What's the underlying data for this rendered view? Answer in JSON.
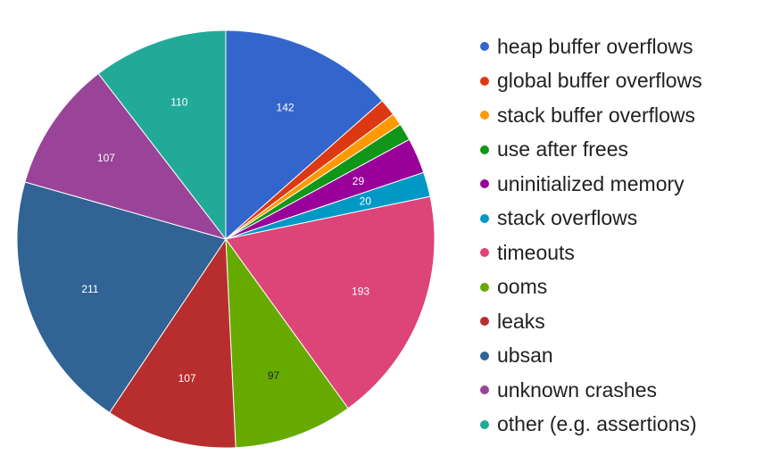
{
  "chart_data": {
    "type": "pie",
    "title": "",
    "legend_position": "right",
    "slices": [
      {
        "label": "heap buffer overflows",
        "value": 142,
        "color": "#3366cc",
        "value_label": "142",
        "label_color": "#ffffff"
      },
      {
        "label": "global buffer overflows",
        "value": 14,
        "color": "#dc3912",
        "value_label": "",
        "label_color": "#ffffff"
      },
      {
        "label": "stack buffer overflows",
        "value": 10,
        "color": "#ff9900",
        "value_label": "",
        "label_color": "#ffffff"
      },
      {
        "label": "use after frees",
        "value": 14,
        "color": "#109618",
        "value_label": "",
        "label_color": "#ffffff"
      },
      {
        "label": "uninitialized memory",
        "value": 29,
        "color": "#990099",
        "value_label": "29",
        "label_color": "#ffffff"
      },
      {
        "label": "stack overflows",
        "value": 20,
        "color": "#0099c6",
        "value_label": "20",
        "label_color": "#ffffff"
      },
      {
        "label": "timeouts",
        "value": 193,
        "color": "#dd4477",
        "value_label": "193",
        "label_color": "#ffffff"
      },
      {
        "label": "ooms",
        "value": 97,
        "color": "#66aa00",
        "value_label": "97",
        "label_color": "#222222"
      },
      {
        "label": "leaks",
        "value": 107,
        "color": "#b82e2e",
        "value_label": "107",
        "label_color": "#ffffff"
      },
      {
        "label": "ubsan",
        "value": 211,
        "color": "#316395",
        "value_label": "211",
        "label_color": "#ffffff"
      },
      {
        "label": "unknown crashes",
        "value": 107,
        "color": "#994499",
        "value_label": "107",
        "label_color": "#ffffff"
      },
      {
        "label": "other (e.g. assertions)",
        "value": 110,
        "color": "#22aa99",
        "value_label": "110",
        "label_color": "#ffffff"
      }
    ]
  }
}
